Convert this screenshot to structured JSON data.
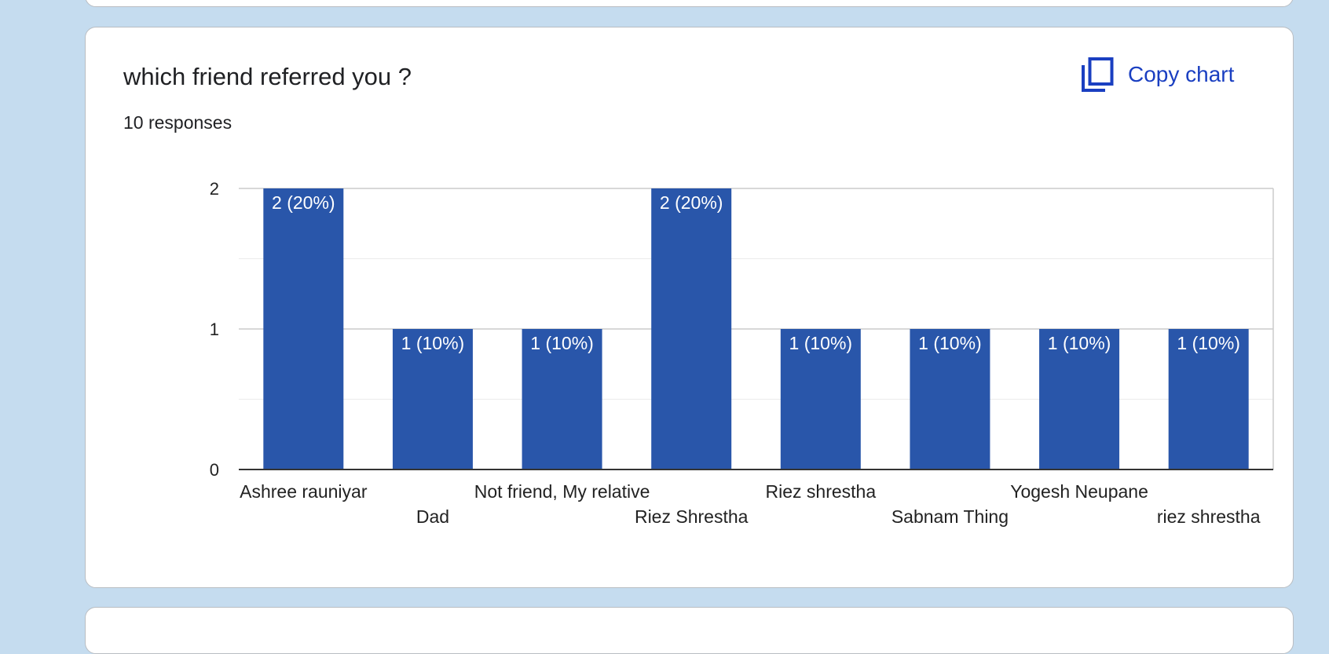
{
  "card": {
    "title": "which friend referred you ?",
    "responses": "10 responses",
    "copy_label": "Copy chart",
    "copy_icon": "copy-icon"
  },
  "colors": {
    "background": "#c5dcef",
    "bar": "#2956aa",
    "copy_accent": "#1a3fc1"
  },
  "chart_data": {
    "type": "bar",
    "title": "which friend referred you ?",
    "categories": [
      "Ashree rauniyar",
      "Dad",
      "Not friend, My relative",
      "Riez Shrestha",
      "Riez shrestha",
      "Sabnam Thing",
      "Yogesh Neupane",
      "riez shrestha"
    ],
    "values": [
      2,
      1,
      1,
      2,
      1,
      1,
      1,
      1
    ],
    "data_labels": [
      "2 (20%)",
      "1 (10%)",
      "1 (10%)",
      "2 (20%)",
      "1 (10%)",
      "1 (10%)",
      "1 (10%)",
      "1 (10%)"
    ],
    "y_ticks": [
      "0",
      "1",
      "2"
    ],
    "ylim": [
      0,
      2
    ],
    "grid": true,
    "legend": "none"
  }
}
